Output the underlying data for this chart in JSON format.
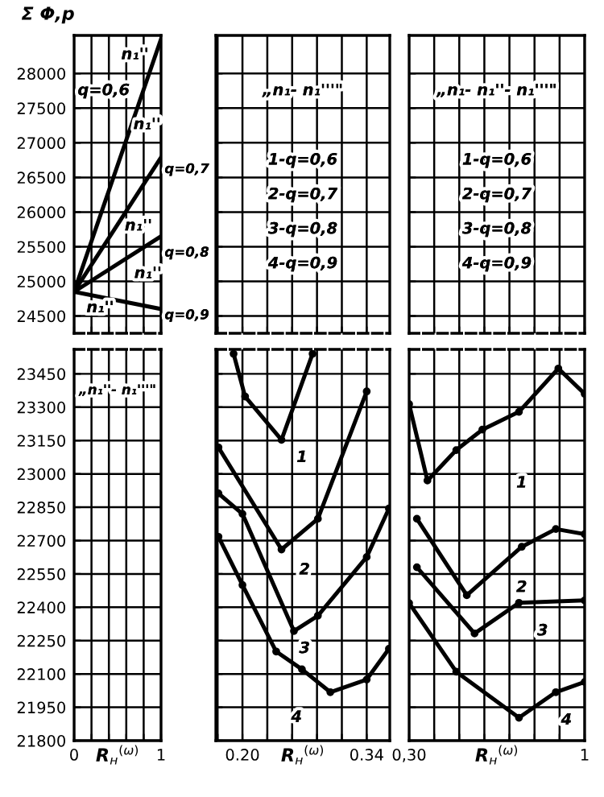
{
  "chart_data": [
    {
      "type": "line",
      "ylabel": "Σ Φ,р",
      "xlim": [
        0,
        1
      ],
      "xticks": [
        0,
        0.2,
        0.4,
        0.6,
        0.8,
        1
      ],
      "ylim": [
        24250,
        28550
      ],
      "yticks": [
        24500,
        25000,
        25500,
        26000,
        26500,
        27000,
        27500,
        28000
      ],
      "tick_labels": "y",
      "grid": true,
      "marker": "none",
      "line_style": "solid",
      "series": [
        {
          "color": "#000000",
          "x": [
            0,
            1
          ],
          "values": [
            24850,
            28500
          ]
        },
        {
          "color": "#000000",
          "x": [
            0,
            1
          ],
          "values": [
            24850,
            26790
          ]
        },
        {
          "color": "#000000",
          "x": [
            0,
            1
          ],
          "values": [
            24850,
            25650
          ]
        },
        {
          "color": "#000000",
          "x": [
            0,
            1
          ],
          "values": [
            24850,
            24600
          ]
        }
      ],
      "annotations": [
        "n₁''",
        "q=0,6",
        "n₁''",
        "q=0,7",
        "n₁''",
        "q=0,8",
        "n₁''",
        "q=0,9",
        "n₁''"
      ]
    },
    {
      "type": "line",
      "xlim": [
        0.17,
        0.366
      ],
      "xticks": [
        0.172,
        0.2,
        0.228,
        0.256,
        0.284,
        0.312,
        0.34
      ],
      "ylim": [
        24250,
        28550
      ],
      "yticks": [
        24500,
        25000,
        25500,
        26000,
        26500,
        27000,
        27500,
        28000
      ],
      "tick_labels": false,
      "grid": true,
      "annotations": [
        "„n₁- n₁'''\"",
        "1-q=0,6",
        "2-q=0,7",
        "3-q=0,8",
        "4-q=0,9"
      ]
    },
    {
      "type": "line",
      "xlim": [
        0.3,
        1
      ],
      "xticks": [
        0.3,
        0.4,
        0.5,
        0.6,
        0.7,
        0.8,
        0.9,
        1
      ],
      "ylim": [
        24250,
        28550
      ],
      "yticks": [
        24500,
        25000,
        25500,
        26000,
        26500,
        27000,
        27500,
        28000
      ],
      "tick_labels": false,
      "grid": true,
      "annotations": [
        "„n₁- n₁''- n₁'''\"",
        "1-q=0,6",
        "2-q=0,7",
        "3-q=0,8",
        "4-q=0,9"
      ]
    },
    {
      "type": "line",
      "xlabel": "R$_{н}$$^{(ω)}$",
      "xlim": [
        0,
        1
      ],
      "xticks": [
        {
          "value": 0,
          "label": "0"
        },
        {
          "value": 0.2,
          "label": null
        },
        {
          "value": 0.4,
          "label": null
        },
        {
          "value": 0.6,
          "label": null
        },
        {
          "value": 0.8,
          "label": null
        },
        {
          "value": 1,
          "label": "1"
        }
      ],
      "ylim": [
        21800,
        23560
      ],
      "yticks": [
        21800,
        21950,
        22100,
        22250,
        22400,
        22550,
        22700,
        22850,
        23000,
        23150,
        23300,
        23450
      ],
      "grid": true,
      "annotations": [
        "„n₁''- n₁'''\""
      ]
    },
    {
      "type": "line",
      "xlabel": "R$_{н}$$^{(ω)}$",
      "xlim": [
        0.17,
        0.366
      ],
      "xticks": [
        {
          "value": 0.172,
          "label": null
        },
        {
          "value": 0.2,
          "label": "0.20"
        },
        {
          "value": 0.228,
          "label": null
        },
        {
          "value": 0.256,
          "label": null
        },
        {
          "value": 0.284,
          "label": null
        },
        {
          "value": 0.312,
          "label": null
        },
        {
          "value": 0.34,
          "label": "0.34"
        }
      ],
      "ylim": [
        21800,
        23560
      ],
      "yticks": [
        21800,
        21950,
        22100,
        22250,
        22400,
        22550,
        22700,
        22850,
        23000,
        23150,
        23300,
        23450
      ],
      "tick_labels": "x",
      "grid": true,
      "marker": "circle",
      "line_style": "solid",
      "series": [
        {
          "color": "#000000",
          "x": [
            0.19,
            0.203,
            0.244,
            0.279
          ],
          "values": [
            23540,
            23348,
            23153,
            23540
          ]
        },
        {
          "color": "#000000",
          "x": [
            0.173,
            0.244,
            0.285,
            0.34
          ],
          "values": [
            23119,
            22660,
            22798,
            23371
          ]
        },
        {
          "color": "#000000",
          "x": [
            0.173,
            0.2,
            0.258,
            0.285,
            0.34,
            0.365
          ],
          "values": [
            22912,
            22820,
            22293,
            22362,
            22626,
            22844
          ]
        },
        {
          "color": "#000000",
          "x": [
            0.173,
            0.2,
            0.238,
            0.267,
            0.299,
            0.34,
            0.365
          ],
          "values": [
            22717,
            22500,
            22201,
            22121,
            22018,
            22075,
            22213
          ]
        }
      ],
      "annotations": [
        "1",
        "2",
        "3",
        "4"
      ]
    },
    {
      "type": "line",
      "xlabel": "R$_{н}$$^{(ω)}$",
      "xlim": [
        0.3,
        1
      ],
      "xticks": [
        {
          "value": 0.3,
          "label": "0,30"
        },
        {
          "value": 0.4,
          "label": null
        },
        {
          "value": 0.5,
          "label": null
        },
        {
          "value": 0.6,
          "label": null
        },
        {
          "value": 0.7,
          "label": null
        },
        {
          "value": 0.8,
          "label": null
        },
        {
          "value": 0.9,
          "label": null
        },
        {
          "value": 1,
          "label": "1"
        }
      ],
      "ylim": [
        21800,
        23560
      ],
      "yticks": [
        21800,
        21950,
        22100,
        22250,
        22400,
        22550,
        22700,
        22850,
        23000,
        23150,
        23300,
        23450
      ],
      "tick_labels": "x",
      "grid": true,
      "marker": "circle",
      "line_style": "solid",
      "series": [
        {
          "color": "#000000",
          "x": [
            0.3,
            0.373,
            0.488,
            0.592,
            0.738,
            0.895,
            1.0
          ],
          "values": [
            23314,
            22970,
            23107,
            23199,
            23279,
            23474,
            23360
          ]
        },
        {
          "color": "#000000",
          "x": [
            0.331,
            0.53,
            0.749,
            0.885,
            1.0
          ],
          "values": [
            22798,
            22454,
            22672,
            22752,
            22729
          ]
        },
        {
          "color": "#000000",
          "x": [
            0.331,
            0.561,
            0.738,
            1.0
          ],
          "values": [
            22580,
            22282,
            22420,
            22431
          ]
        },
        {
          "color": "#000000",
          "x": [
            0.3,
            0.488,
            0.738,
            0.885,
            1.0
          ],
          "values": [
            22419,
            22110,
            21903,
            22018,
            22064
          ]
        }
      ],
      "annotations": [
        "1",
        "2",
        "3",
        "4"
      ]
    }
  ]
}
